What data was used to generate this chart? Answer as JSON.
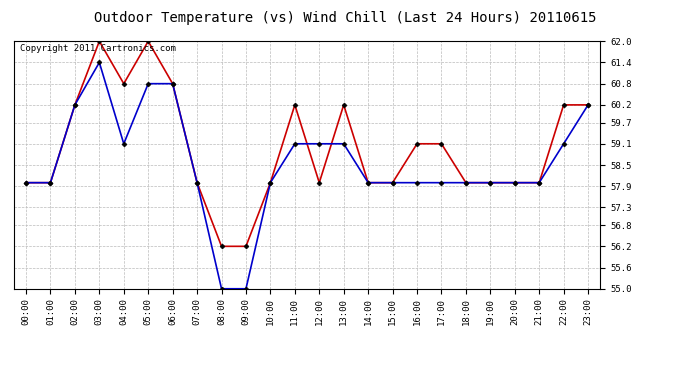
{
  "title": "Outdoor Temperature (vs) Wind Chill (Last 24 Hours) 20110615",
  "copyright": "Copyright 2011 Cartronics.com",
  "hours": [
    "00:00",
    "01:00",
    "02:00",
    "03:00",
    "04:00",
    "05:00",
    "06:00",
    "07:00",
    "08:00",
    "09:00",
    "10:00",
    "11:00",
    "12:00",
    "13:00",
    "14:00",
    "15:00",
    "16:00",
    "17:00",
    "18:00",
    "19:00",
    "20:00",
    "21:00",
    "22:00",
    "23:00"
  ],
  "temp": [
    58.0,
    58.0,
    60.2,
    62.0,
    60.8,
    62.0,
    60.8,
    58.0,
    56.2,
    56.2,
    58.0,
    60.2,
    58.0,
    60.2,
    58.0,
    58.0,
    59.1,
    59.1,
    58.0,
    58.0,
    58.0,
    58.0,
    60.2,
    60.2
  ],
  "windchill": [
    58.0,
    58.0,
    60.2,
    61.4,
    59.1,
    60.8,
    60.8,
    58.0,
    55.0,
    55.0,
    58.0,
    59.1,
    59.1,
    59.1,
    58.0,
    58.0,
    58.0,
    58.0,
    58.0,
    58.0,
    58.0,
    58.0,
    59.1,
    60.2
  ],
  "temp_color": "#cc0000",
  "windchill_color": "#0000cc",
  "ylim": [
    55.0,
    62.0
  ],
  "yticks": [
    55.0,
    55.6,
    56.2,
    56.8,
    57.3,
    57.9,
    58.5,
    59.1,
    59.7,
    60.2,
    60.8,
    61.4,
    62.0
  ],
  "background_color": "#ffffff",
  "plot_bg_color": "#ffffff",
  "grid_color": "#bbbbbb",
  "title_fontsize": 10,
  "copyright_fontsize": 6.5,
  "marker": "D",
  "marker_size": 2.5,
  "linewidth": 1.2
}
